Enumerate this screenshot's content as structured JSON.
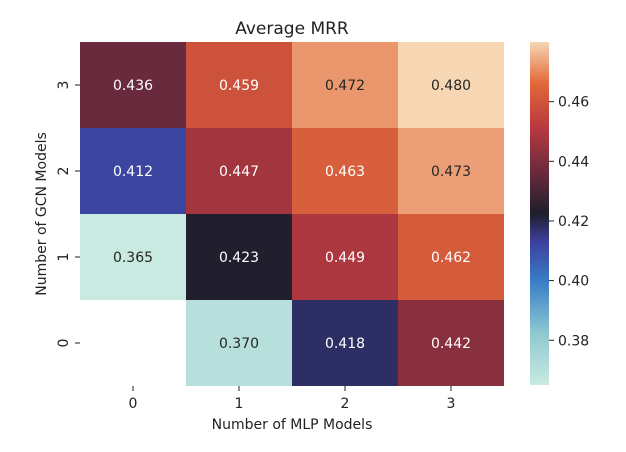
{
  "chart_data": {
    "type": "heatmap",
    "title": "Average MRR",
    "xlabel": "Number of MLP Models",
    "ylabel": "Number of GCN Models",
    "x_categories": [
      "0",
      "1",
      "2",
      "3"
    ],
    "y_categories": [
      "3",
      "2",
      "1",
      "0"
    ],
    "values": [
      [
        0.436,
        0.459,
        0.472,
        0.48
      ],
      [
        0.412,
        0.447,
        0.463,
        0.473
      ],
      [
        0.365,
        0.423,
        0.449,
        0.462
      ],
      [
        null,
        0.37,
        0.418,
        0.442
      ]
    ],
    "value_labels": [
      [
        "0.436",
        "0.459",
        "0.472",
        "0.480"
      ],
      [
        "0.412",
        "0.447",
        "0.463",
        "0.473"
      ],
      [
        "0.365",
        "0.423",
        "0.449",
        "0.462"
      ],
      [
        "",
        "0.370",
        "0.418",
        "0.442"
      ]
    ],
    "colormap": "icefire",
    "vmin": 0.365,
    "vmax": 0.48,
    "colorbar_ticks": [
      "0.38",
      "0.40",
      "0.42",
      "0.44",
      "0.46"
    ],
    "colorbar_tick_values": [
      0.38,
      0.4,
      0.42,
      0.44,
      0.46
    ]
  }
}
